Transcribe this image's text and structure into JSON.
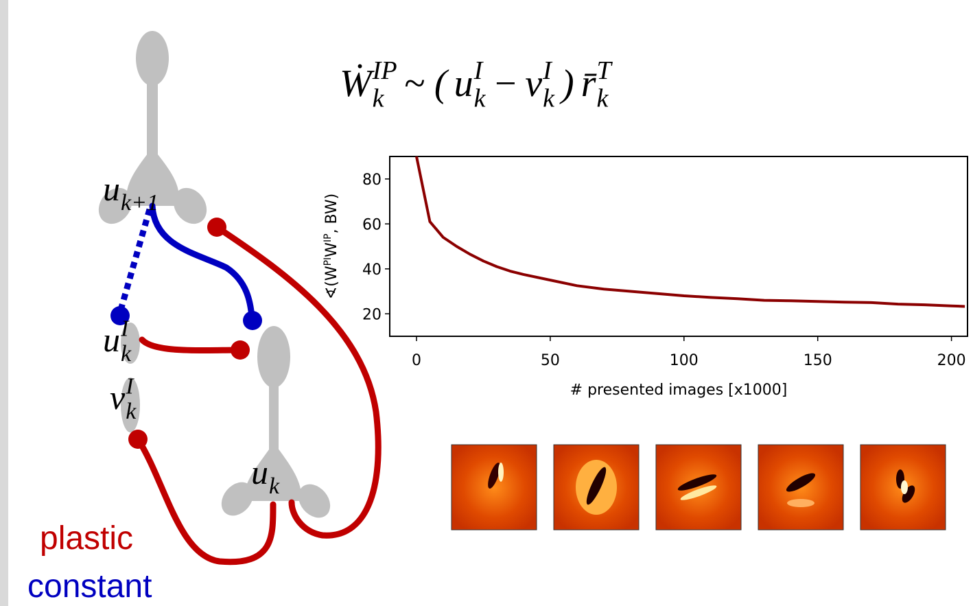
{
  "formula": [
    {
      "base": "Ẇ",
      "sub": "k",
      "sup": "IP"
    },
    {
      "base": "~ ("
    },
    {
      "base": "u",
      "sub": "k",
      "sup": "I"
    },
    {
      "base": "−"
    },
    {
      "base": "v",
      "sub": "k",
      "sup": "I"
    },
    {
      "base": ")"
    },
    {
      "base": "r̄",
      "sub": "k",
      "sup": "T"
    }
  ],
  "diagram": {
    "labels": [
      {
        "base": "u",
        "sub": "k+1"
      },
      {
        "base": "u",
        "sub": "k",
        "sup": "I"
      },
      {
        "base": "v",
        "sub": "k",
        "sup": "I"
      },
      {
        "base": "u",
        "sub": "k"
      }
    ],
    "legend": [
      {
        "text": "plastic",
        "color": "#c00000"
      },
      {
        "text": "constant",
        "color": "#0000c0"
      }
    ]
  },
  "chart_data": {
    "type": "line",
    "ylabel": [
      {
        "text": "∢(W"
      },
      {
        "text": "PI",
        "sup": true
      },
      {
        "text": "W"
      },
      {
        "text": "IP",
        "sup": true
      },
      {
        "text": ", BW)"
      }
    ],
    "xlabel": "# presented images [x1000]",
    "x": [
      0,
      5,
      10,
      15,
      20,
      25,
      30,
      35,
      40,
      50,
      60,
      70,
      80,
      90,
      100,
      110,
      120,
      130,
      140,
      150,
      160,
      170,
      180,
      190,
      200,
      205
    ],
    "series": [
      {
        "color": "#8b0000",
        "values": [
          90,
          61,
          54,
          50,
          46.5,
          43.5,
          41,
          39,
          37.5,
          35,
          32.5,
          31,
          30,
          29,
          28,
          27.3,
          26.7,
          26,
          25.8,
          25.5,
          25.2,
          25,
          24.3,
          24,
          23.5,
          23.3
        ]
      }
    ],
    "xlim": [
      -10,
      206
    ],
    "ylim": [
      10,
      90
    ],
    "xticks": [
      0,
      50,
      100,
      150,
      200
    ],
    "yticks": [
      20,
      40,
      60,
      80
    ]
  }
}
